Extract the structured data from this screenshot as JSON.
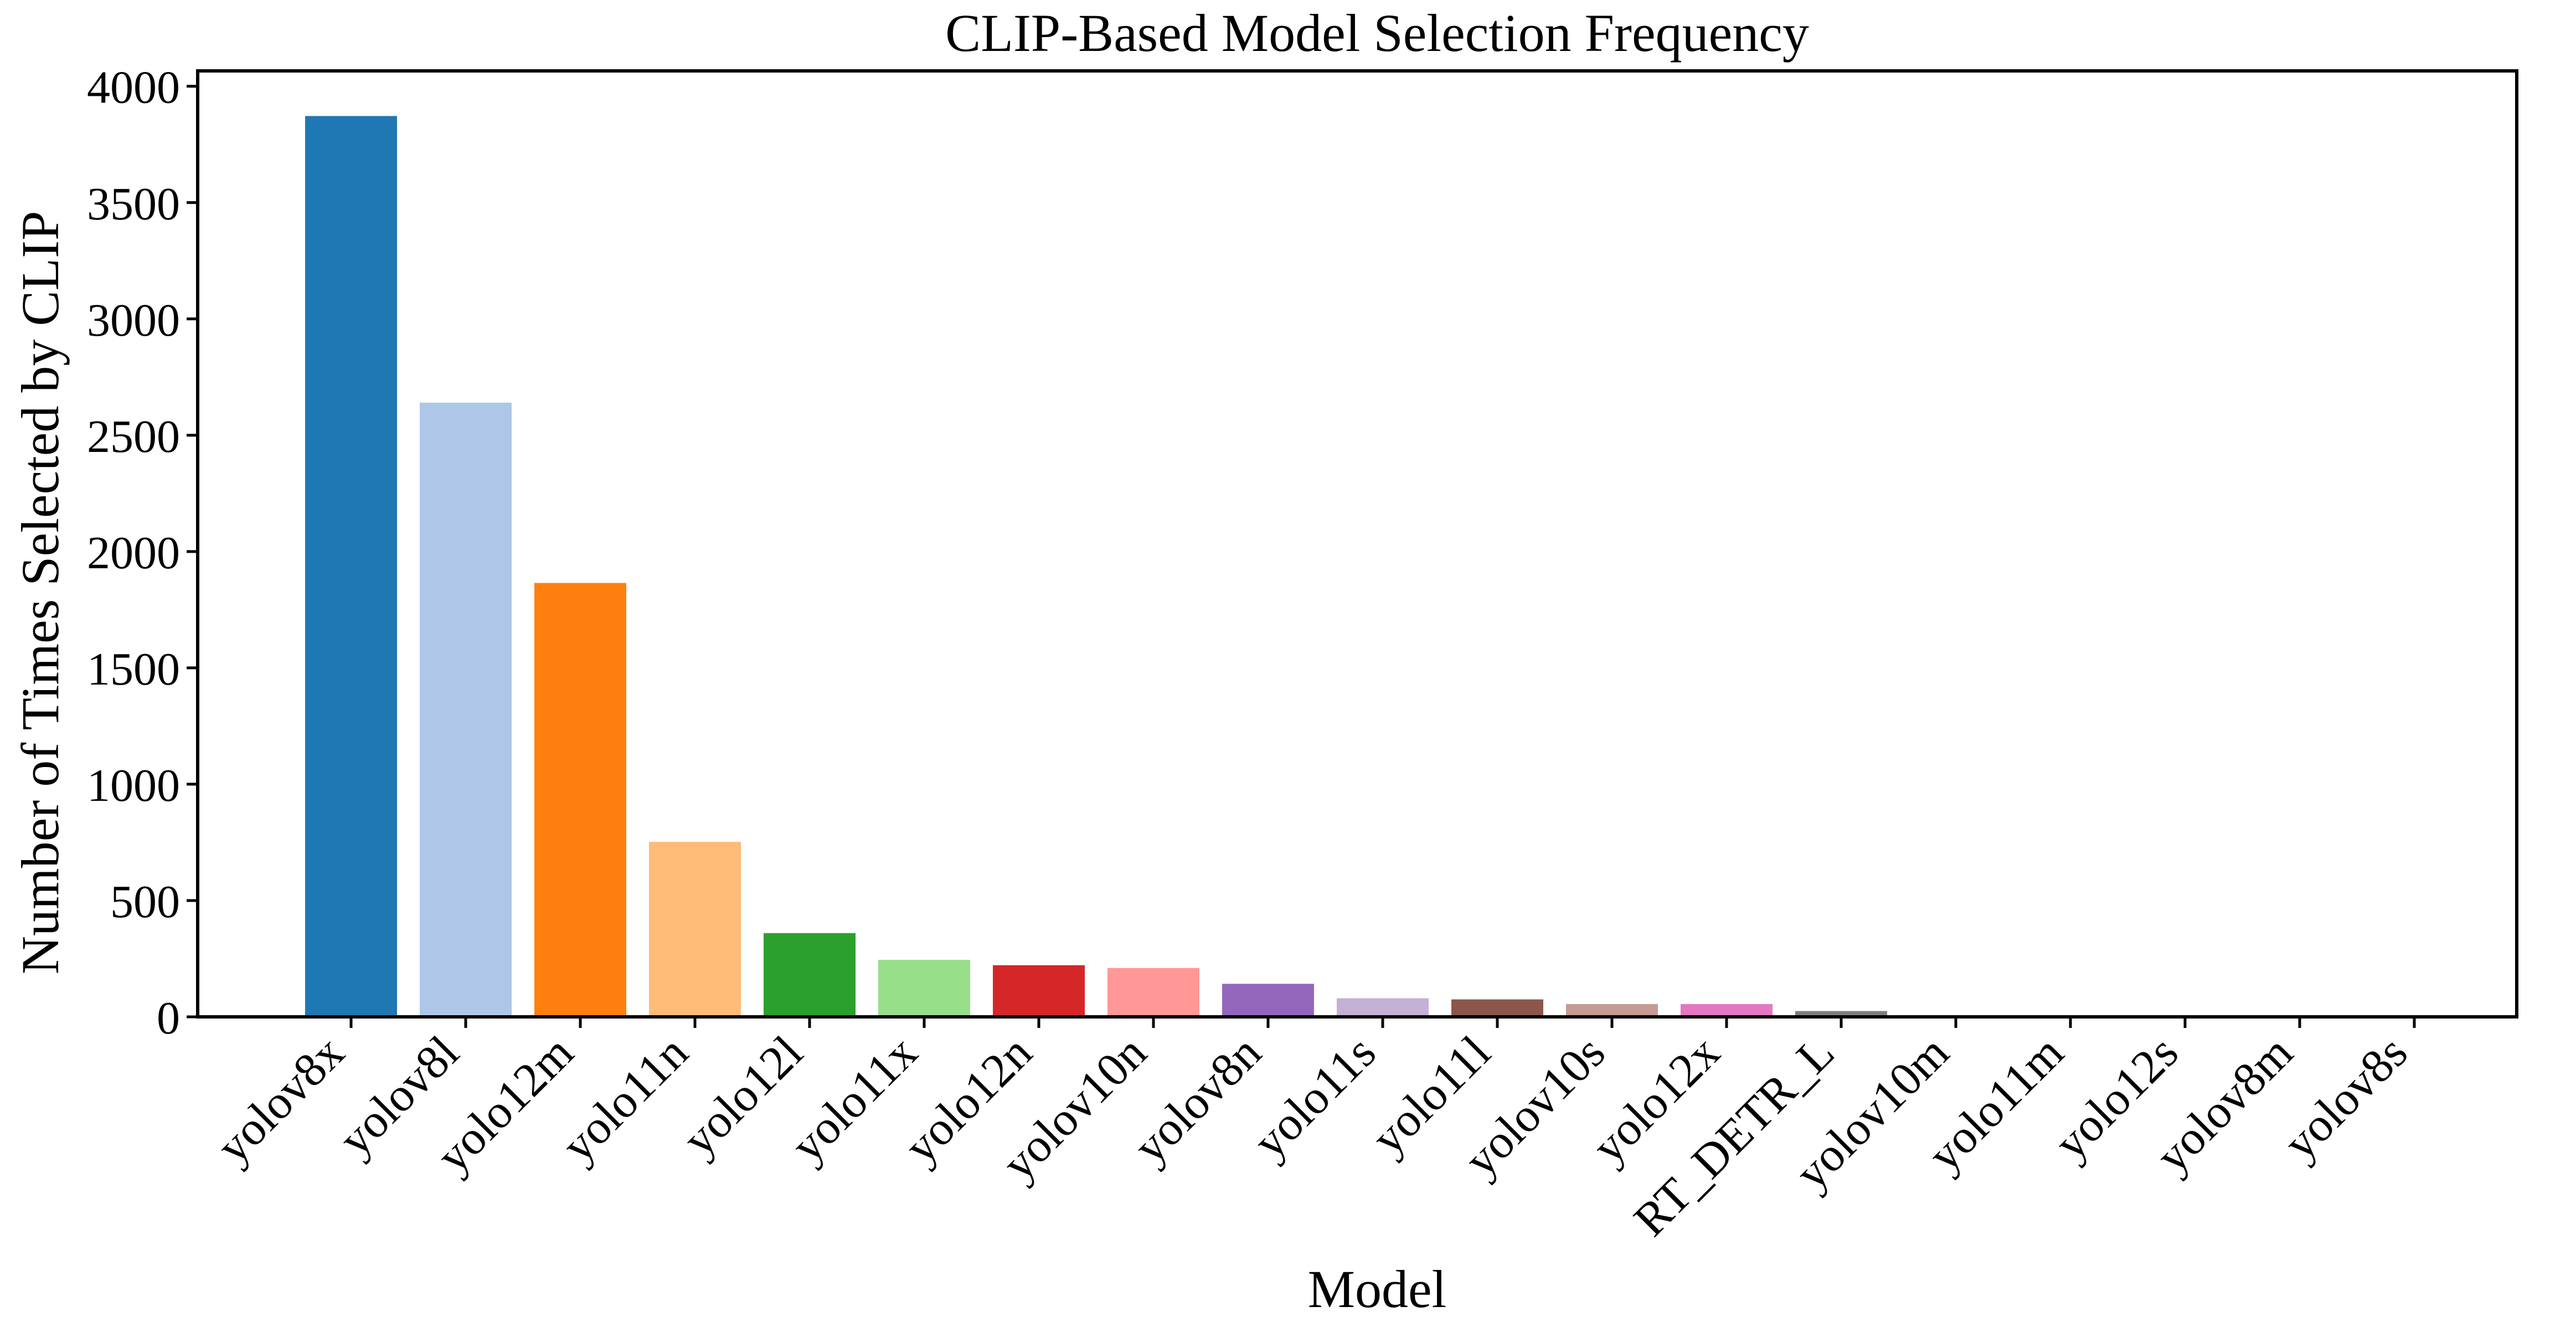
{
  "chart_data": {
    "type": "bar",
    "title": "CLIP-Based Model Selection Frequency",
    "xlabel": "Model",
    "ylabel": "Number of Times Selected by CLIP",
    "categories": [
      "yolov8x",
      "yolov8l",
      "yolo12m",
      "yolo11n",
      "yolo12l",
      "yolo11x",
      "yolo12n",
      "yolov10n",
      "yolov8n",
      "yolo11s",
      "yolo11l",
      "yolov10s",
      "yolo12x",
      "RT_DETR_L",
      "yolov10m",
      "yolo11m",
      "yolo12s",
      "yolov8m",
      "yolov8s"
    ],
    "values": [
      3872,
      2640,
      1865,
      752,
      360,
      245,
      222,
      210,
      142,
      80,
      75,
      55,
      55,
      25,
      2,
      2,
      1,
      1,
      1
    ],
    "colors": [
      "#1f77b4",
      "#aec7e8",
      "#ff7f0e",
      "#ffbb78",
      "#2ca02c",
      "#98df8a",
      "#d62728",
      "#ff9896",
      "#9467bd",
      "#c5b0d5",
      "#8c564b",
      "#c49c94",
      "#e377c2",
      "#7f7f7f",
      "#c7c7c7",
      "#bcbd22",
      "#dbdb8d",
      "#17becf",
      "#9edae5"
    ],
    "yticks": [
      0,
      500,
      1000,
      1500,
      2000,
      2500,
      3000,
      3500,
      4000
    ],
    "ylim": [
      0,
      4066
    ],
    "grid": false,
    "legend": "none"
  }
}
